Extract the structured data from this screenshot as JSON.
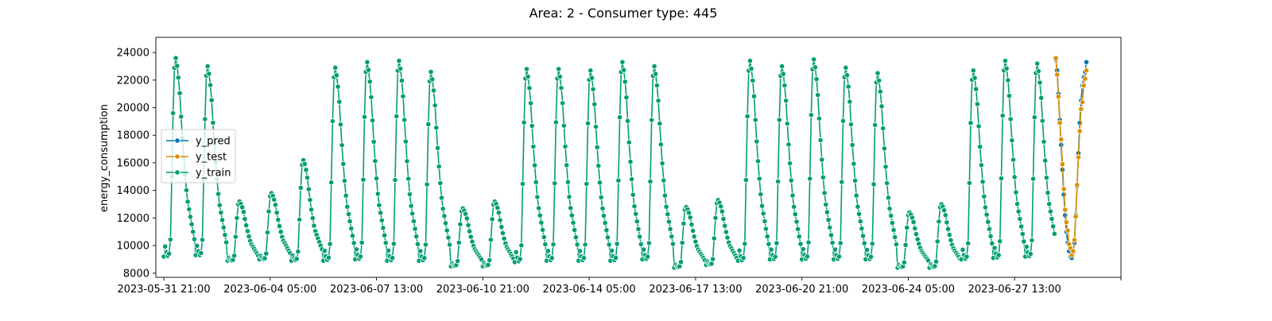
{
  "chart_data": {
    "type": "line",
    "title": "Area: 2 - Consumer type: 445",
    "xlabel": "",
    "ylabel": "energy_consumption",
    "x_ticks": [
      "2023-05-31 21:00",
      "2023-06-04 05:00",
      "2023-06-07 13:00",
      "2023-06-10 21:00",
      "2023-06-14 05:00",
      "2023-06-17 13:00",
      "2023-06-20 21:00",
      "2023-06-24 05:00",
      "2023-06-27 13:00",
      ""
    ],
    "y_ticks": [
      8000,
      10000,
      12000,
      14000,
      16000,
      18000,
      20000,
      22000,
      24000
    ],
    "xlim_hours": [
      -6,
      720
    ],
    "ylim": [
      7700,
      25100
    ],
    "grid": false,
    "legend_position": "center-left",
    "colors": {
      "y_pred": "#0173b2",
      "y_test": "#de8f05",
      "y_train": "#029e73"
    },
    "series": [
      {
        "name": "y_pred",
        "x": [
          671,
          672,
          673,
          674,
          675,
          676,
          677,
          678,
          679,
          680,
          681,
          682,
          683,
          684,
          685,
          686,
          687,
          688,
          689,
          690,
          691,
          692,
          693,
          694
        ],
        "y": [
          23500,
          22700,
          21000,
          19100,
          17300,
          15500,
          13700,
          12200,
          11000,
          10200,
          9600,
          9200,
          9100,
          9500,
          10200,
          12200,
          14300,
          16700,
          18900,
          20500,
          21600,
          22200,
          22600,
          23300
        ]
      },
      {
        "name": "y_test",
        "x": [
          671,
          672,
          673,
          674,
          675,
          676,
          677,
          678,
          679,
          680,
          681,
          682,
          683,
          684,
          685,
          686,
          687,
          688,
          689,
          690,
          691,
          692,
          693,
          694
        ],
        "y": [
          23600,
          22400,
          20800,
          18900,
          17700,
          15900,
          14100,
          12600,
          11700,
          11100,
          10100,
          9800,
          9300,
          9600,
          10400,
          12100,
          14400,
          16400,
          18300,
          19900,
          20400,
          21600,
          22100,
          22700
        ]
      },
      {
        "name": "y_train",
        "daily": [
          {
            "base": 9200,
            "peak": 23600,
            "dip": 9900
          },
          {
            "base": 9300,
            "peak": 23000,
            "dip": 9500
          },
          {
            "base": 8900,
            "peak": 13200,
            "dip": 9100
          },
          {
            "base": 9000,
            "peak": 13800,
            "dip": 9300
          },
          {
            "base": 8900,
            "peak": 16200,
            "dip": 9600
          },
          {
            "base": 8900,
            "peak": 22900,
            "dip": 9700
          },
          {
            "base": 9000,
            "peak": 23300,
            "dip": 9600
          },
          {
            "base": 8900,
            "peak": 23400,
            "dip": 9500
          },
          {
            "base": 8900,
            "peak": 22600,
            "dip": 9500
          },
          {
            "base": 8500,
            "peak": 12700,
            "dip": 8900
          },
          {
            "base": 8500,
            "peak": 13200,
            "dip": 9000
          },
          {
            "base": 8800,
            "peak": 22800,
            "dip": 9600
          },
          {
            "base": 8900,
            "peak": 22800,
            "dip": 9500
          },
          {
            "base": 8900,
            "peak": 22700,
            "dip": 9500
          },
          {
            "base": 8900,
            "peak": 23300,
            "dip": 9500
          },
          {
            "base": 9000,
            "peak": 23000,
            "dip": 9500
          },
          {
            "base": 8400,
            "peak": 12800,
            "dip": 8900
          },
          {
            "base": 8600,
            "peak": 13300,
            "dip": 9000
          },
          {
            "base": 8900,
            "peak": 23400,
            "dip": 9500
          },
          {
            "base": 9000,
            "peak": 23000,
            "dip": 9500
          },
          {
            "base": 9000,
            "peak": 23500,
            "dip": 9600
          },
          {
            "base": 9000,
            "peak": 22900,
            "dip": 9600
          },
          {
            "base": 9000,
            "peak": 22500,
            "dip": 9500
          },
          {
            "base": 8400,
            "peak": 12400,
            "dip": 8900
          },
          {
            "base": 8400,
            "peak": 13000,
            "dip": 9000
          },
          {
            "base": 9000,
            "peak": 22700,
            "dip": 9600
          },
          {
            "base": 9100,
            "peak": 23400,
            "dip": 9700
          },
          {
            "base": 9200,
            "peak": 23200,
            "dip": 9700
          },
          {
            "base": 9200,
            "peak": 24200,
            "dip": 9800
          }
        ]
      }
    ]
  }
}
